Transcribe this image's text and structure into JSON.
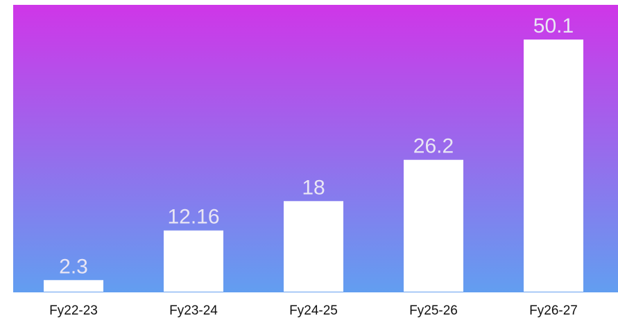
{
  "chart_data": {
    "type": "bar",
    "categories": [
      "Fy22-23",
      "Fy23-24",
      "Fy24-25",
      "Fy25-26",
      "Fy26-27"
    ],
    "values": [
      2.3,
      12.16,
      18,
      26.2,
      50.1
    ],
    "value_labels": [
      "2.3",
      "12.16",
      "18",
      "26.2",
      "50.1"
    ],
    "title": "",
    "xlabel": "",
    "ylabel": "",
    "ylim": [
      0,
      57
    ],
    "grid": false,
    "legend": "none",
    "colors": {
      "background_top": "#cf36e8",
      "background_bottom": "#629ef0",
      "bar": "#ffffff",
      "value_label": "#e9e6f4",
      "tick_label": "#111111"
    }
  }
}
